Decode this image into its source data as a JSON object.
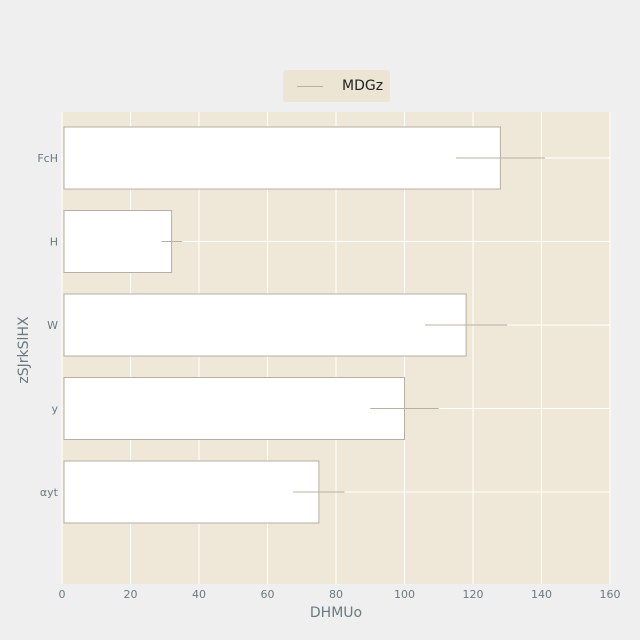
{
  "chart_data": {
    "type": "bar",
    "orientation": "horizontal",
    "categories": [
      "FcH",
      "H",
      "W",
      "y",
      "αyt"
    ],
    "series": [
      {
        "name": "MDGz",
        "values": [
          128,
          32,
          118,
          100,
          75
        ],
        "error": [
          13,
          3,
          12,
          10,
          7.5
        ]
      }
    ],
    "xlabel": "DHMUo",
    "ylabel": "zSJrkSlHX",
    "xlim": [
      0,
      160
    ],
    "xticks": [
      0,
      20,
      40,
      60,
      80,
      100,
      120,
      140,
      160
    ],
    "grid": true,
    "legend_position": "top-center",
    "colors": {
      "plot_background": "#efe8d8",
      "page_background": "#efefef",
      "bar_fill": "#ffffff",
      "bar_stroke": "#b5afa5",
      "error_bar": "#b8b0a4",
      "grid": "#ffffff",
      "text": "#6b7a80"
    }
  }
}
